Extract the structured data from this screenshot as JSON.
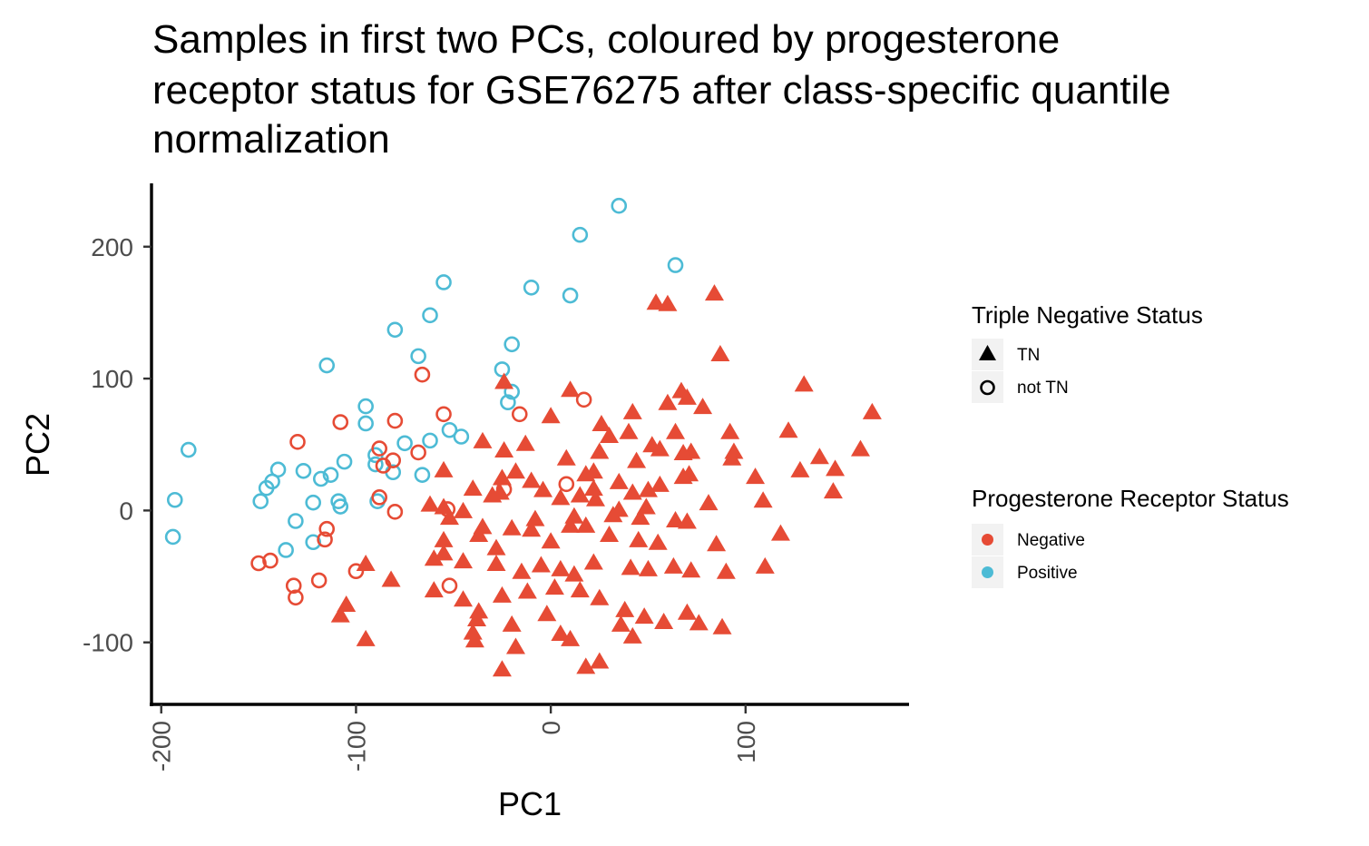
{
  "chart_data": {
    "type": "scatter",
    "title": "Samples in first two PCs, coloured by progesterone receptor status for GSE76275 after class-specific quantile normalization",
    "title_lines": [
      "Samples in first two PCs, coloured by progesterone",
      "receptor status for GSE76275 after class-specific quantile",
      "normalization"
    ],
    "xlabel": "PC1",
    "ylabel": "PC2",
    "xlim": [
      -205,
      183
    ],
    "ylim": [
      -147,
      248
    ],
    "x_ticks": [
      -200,
      -100,
      0,
      100
    ],
    "y_ticks": [
      200,
      100,
      0,
      -100
    ],
    "grid": false,
    "legend_placement": "right",
    "legend_shape": {
      "title": "Triple Negative Status",
      "entries": [
        {
          "label": "TN",
          "shape": "triangle"
        },
        {
          "label": "not TN",
          "shape": "open-circle"
        }
      ]
    },
    "legend_color": {
      "title": "Progesterone Receptor Status",
      "entries": [
        {
          "label": "Negative",
          "color": "#E64B35"
        },
        {
          "label": "Positive",
          "color": "#4DBBD5"
        }
      ]
    },
    "series": [
      {
        "name": "Positive / not TN",
        "color": "#4DBBD5",
        "shape": "open-circle",
        "points": [
          [
            35,
            231
          ],
          [
            15,
            209
          ],
          [
            64,
            186
          ],
          [
            -55,
            173
          ],
          [
            -10,
            169
          ],
          [
            10,
            163
          ],
          [
            -62,
            148
          ],
          [
            -80,
            137
          ],
          [
            -68,
            117
          ],
          [
            -115,
            110
          ],
          [
            -20,
            126
          ],
          [
            -25,
            107
          ],
          [
            -20,
            90
          ],
          [
            -22,
            82
          ],
          [
            -95,
            79
          ],
          [
            -95,
            66
          ],
          [
            -52,
            61
          ],
          [
            -46,
            56
          ],
          [
            -62,
            53
          ],
          [
            -75,
            51
          ],
          [
            -186,
            46
          ],
          [
            -90,
            42
          ],
          [
            -106,
            37
          ],
          [
            -90,
            35
          ],
          [
            -81,
            29
          ],
          [
            -66,
            27
          ],
          [
            -140,
            31
          ],
          [
            -127,
            30
          ],
          [
            -113,
            27
          ],
          [
            -118,
            24
          ],
          [
            -143,
            22
          ],
          [
            -146,
            17
          ],
          [
            -122,
            6
          ],
          [
            -149,
            7
          ],
          [
            -109,
            7
          ],
          [
            -108,
            3
          ],
          [
            -89,
            7
          ],
          [
            -193,
            8
          ],
          [
            -131,
            -8
          ],
          [
            -194,
            -20
          ],
          [
            -122,
            -24
          ],
          [
            -136,
            -30
          ]
        ]
      },
      {
        "name": "Negative / not TN",
        "color": "#E64B35",
        "shape": "open-circle",
        "points": [
          [
            -66,
            103
          ],
          [
            17,
            84
          ],
          [
            -55,
            73
          ],
          [
            -16,
            73
          ],
          [
            -80,
            68
          ],
          [
            -108,
            67
          ],
          [
            -130,
            52
          ],
          [
            -88,
            47
          ],
          [
            -68,
            44
          ],
          [
            -81,
            38
          ],
          [
            -86,
            34
          ],
          [
            -24,
            16
          ],
          [
            8,
            20
          ],
          [
            -88,
            10
          ],
          [
            -53,
            1
          ],
          [
            -80,
            -1
          ],
          [
            -115,
            -14
          ],
          [
            -116,
            -22
          ],
          [
            -144,
            -38
          ],
          [
            -150,
            -40
          ],
          [
            -100,
            -46
          ],
          [
            -132,
            -57
          ],
          [
            -119,
            -53
          ],
          [
            -52,
            -57
          ],
          [
            -131,
            -66
          ]
        ]
      },
      {
        "name": "Negative / TN",
        "color": "#E64B35",
        "shape": "triangle",
        "points": [
          [
            84,
            165
          ],
          [
            54,
            158
          ],
          [
            60,
            157
          ],
          [
            87,
            119
          ],
          [
            -24,
            98
          ],
          [
            130,
            96
          ],
          [
            10,
            92
          ],
          [
            67,
            91
          ],
          [
            70,
            86
          ],
          [
            60,
            82
          ],
          [
            78,
            79
          ],
          [
            42,
            75
          ],
          [
            0,
            72
          ],
          [
            165,
            75
          ],
          [
            26,
            66
          ],
          [
            40,
            60
          ],
          [
            64,
            60
          ],
          [
            92,
            60
          ],
          [
            122,
            61
          ],
          [
            30,
            57
          ],
          [
            52,
            50
          ],
          [
            56,
            47
          ],
          [
            -35,
            53
          ],
          [
            -13,
            51
          ],
          [
            -24,
            46
          ],
          [
            72,
            45
          ],
          [
            68,
            44
          ],
          [
            94,
            45
          ],
          [
            25,
            45
          ],
          [
            93,
            40
          ],
          [
            159,
            47
          ],
          [
            138,
            41
          ],
          [
            8,
            40
          ],
          [
            44,
            38
          ],
          [
            -55,
            31
          ],
          [
            -18,
            30
          ],
          [
            22,
            30
          ],
          [
            146,
            32
          ],
          [
            18,
            28
          ],
          [
            -25,
            25
          ],
          [
            -10,
            23
          ],
          [
            128,
            31
          ],
          [
            71,
            28
          ],
          [
            68,
            26
          ],
          [
            105,
            26
          ],
          [
            35,
            22
          ],
          [
            56,
            20
          ],
          [
            22,
            17
          ],
          [
            50,
            16
          ],
          [
            -4,
            16
          ],
          [
            -40,
            17
          ],
          [
            -26,
            14
          ],
          [
            -30,
            12
          ],
          [
            5,
            10
          ],
          [
            145,
            15
          ],
          [
            42,
            14
          ],
          [
            15,
            12
          ],
          [
            23,
            9
          ],
          [
            -62,
            5
          ],
          [
            -55,
            3
          ],
          [
            -45,
            0
          ],
          [
            35,
            1
          ],
          [
            49,
            3
          ],
          [
            -52,
            -5
          ],
          [
            -8,
            -6
          ],
          [
            12,
            -4
          ],
          [
            32,
            -3
          ],
          [
            81,
            6
          ],
          [
            109,
            8
          ],
          [
            46,
            -5
          ],
          [
            64,
            -7
          ],
          [
            70,
            -8
          ],
          [
            -35,
            -12
          ],
          [
            -20,
            -13
          ],
          [
            -10,
            -14
          ],
          [
            10,
            -11
          ],
          [
            18,
            -11
          ],
          [
            -37,
            -18
          ],
          [
            -55,
            -22
          ],
          [
            -28,
            -28
          ],
          [
            30,
            -18
          ],
          [
            45,
            -22
          ],
          [
            0,
            -23
          ],
          [
            55,
            -24
          ],
          [
            85,
            -25
          ],
          [
            -55,
            -32
          ],
          [
            -60,
            -36
          ],
          [
            -45,
            -38
          ],
          [
            -28,
            -40
          ],
          [
            -15,
            -46
          ],
          [
            -5,
            -41
          ],
          [
            5,
            -44
          ],
          [
            12,
            -48
          ],
          [
            22,
            -39
          ],
          [
            41,
            -43
          ],
          [
            50,
            -44
          ],
          [
            63,
            -42
          ],
          [
            72,
            -45
          ],
          [
            90,
            -46
          ],
          [
            110,
            -42
          ],
          [
            -95,
            -40
          ],
          [
            -82,
            -52
          ],
          [
            -60,
            -60
          ],
          [
            -45,
            -67
          ],
          [
            -25,
            -64
          ],
          [
            -12,
            -61
          ],
          [
            2,
            -58
          ],
          [
            15,
            -60
          ],
          [
            25,
            -66
          ],
          [
            -38,
            -82
          ],
          [
            -20,
            -86
          ],
          [
            -40,
            -92
          ],
          [
            5,
            -93
          ],
          [
            10,
            -97
          ],
          [
            -105,
            -71
          ],
          [
            -108,
            -79
          ],
          [
            -95,
            -97
          ],
          [
            -39,
            -98
          ],
          [
            42,
            -95
          ],
          [
            -25,
            -120
          ],
          [
            -18,
            -103
          ],
          [
            18,
            -118
          ],
          [
            25,
            -114
          ],
          [
            38,
            -75
          ],
          [
            48,
            -80
          ],
          [
            58,
            -84
          ],
          [
            70,
            -77
          ],
          [
            76,
            -85
          ],
          [
            88,
            -88
          ],
          [
            36,
            -86
          ],
          [
            -2,
            -78
          ],
          [
            -37,
            -76
          ],
          [
            118,
            -17
          ]
        ]
      }
    ]
  }
}
